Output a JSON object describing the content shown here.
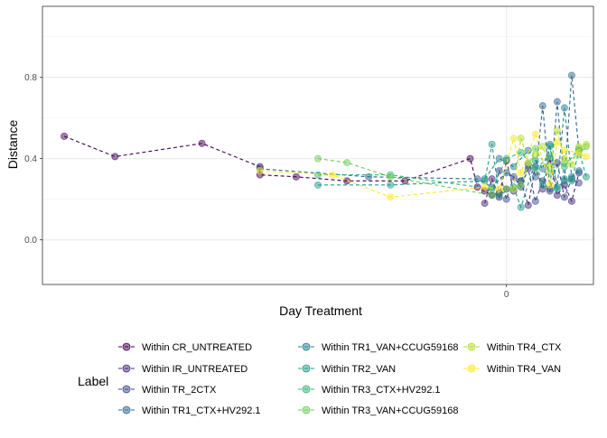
{
  "chart_data": {
    "type": "line",
    "xlabel": "Day Treatment",
    "ylabel": "Distance",
    "x_ticks": [
      0
    ],
    "y_ticks": [
      0.0,
      0.4,
      0.8
    ],
    "y_tick_labels": [
      "0.0",
      "0.4",
      "0.8"
    ],
    "x_tick_labels": [
      "0"
    ],
    "xlim": [
      -32,
      6
    ],
    "ylim": [
      -0.22,
      1.15
    ],
    "grid": true,
    "legend_title": "Label",
    "legend_position": "bottom",
    "series": [
      {
        "name": "Within CR_UNTREATED",
        "color": "#440154",
        "x": [
          -30.5,
          -27.0,
          -21.0,
          -17.0,
          -17.0,
          -14.5,
          -11.0,
          -7.0,
          -2.5,
          -2.0,
          -1.5,
          -1.0,
          -0.5,
          0.0
        ],
        "y": [
          0.51,
          0.41,
          0.475,
          0.36,
          0.32,
          0.31,
          0.29,
          0.29,
          0.4,
          0.26,
          0.24,
          0.22,
          0.23,
          0.25
        ]
      },
      {
        "name": "Within IR_UNTREATED",
        "color": "#482878",
        "x": [
          -1.5,
          -1.0,
          -0.5,
          0.0,
          0.5,
          1.0,
          1.5,
          2.0,
          2.5,
          3.0,
          3.5,
          4.0,
          4.5,
          5.0
        ],
        "y": [
          0.18,
          0.3,
          0.21,
          0.39,
          0.24,
          0.29,
          0.17,
          0.36,
          0.25,
          0.4,
          0.22,
          0.27,
          0.19,
          0.33
        ]
      },
      {
        "name": "Within TR_2CTX",
        "color": "#3E4A89",
        "x": [
          -1.0,
          -0.5,
          0.0,
          0.5,
          1.0,
          1.5,
          2.0,
          2.5,
          3.0,
          3.5,
          4.0,
          4.5,
          5.0
        ],
        "y": [
          0.22,
          0.34,
          0.2,
          0.31,
          0.26,
          0.35,
          0.19,
          0.29,
          0.24,
          0.38,
          0.21,
          0.3,
          0.28
        ]
      },
      {
        "name": "Within TR1_CTX+HV292.1",
        "color": "#31688E",
        "x": [
          -17.0,
          -9.5,
          -2.0,
          -1.0,
          0.0,
          1.0,
          1.5,
          2.0,
          2.5,
          3.0,
          3.5,
          4.0,
          4.5,
          5.0
        ],
        "y": [
          0.35,
          0.31,
          0.3,
          0.26,
          0.33,
          0.29,
          0.37,
          0.31,
          0.66,
          0.25,
          0.68,
          0.29,
          0.81,
          0.44
        ]
      },
      {
        "name": "Within TR1_VAN+CCUG59168",
        "color": "#26828E",
        "x": [
          -1.5,
          -0.5,
          0.5,
          1.5,
          2.5,
          3.0,
          3.5,
          4.0,
          4.5,
          5.0
        ],
        "y": [
          0.3,
          0.4,
          0.36,
          0.44,
          0.35,
          0.47,
          0.26,
          0.65,
          0.31,
          0.34
        ]
      },
      {
        "name": "Within TR2_VAN",
        "color": "#1F9E89",
        "x": [
          -13.0,
          -8.0,
          -1.5,
          -1.0,
          -0.5,
          0.5,
          1.0,
          2.0,
          2.5,
          3.0,
          3.5,
          4.0,
          4.5,
          5.0,
          5.5
        ],
        "y": [
          0.27,
          0.27,
          0.29,
          0.47,
          0.22,
          0.26,
          0.16,
          0.39,
          0.27,
          0.46,
          0.25,
          0.3,
          0.29,
          0.44,
          0.31
        ]
      },
      {
        "name": "Within TR3_CTX+HV292.1",
        "color": "#35B779",
        "x": [
          -13.0,
          -8.0,
          -1.0,
          0.0,
          1.0,
          2.0,
          3.0,
          4.0,
          5.0
        ],
        "y": [
          0.32,
          0.32,
          0.25,
          0.4,
          0.43,
          0.35,
          0.41,
          0.36,
          0.45
        ]
      },
      {
        "name": "Within TR3_VAN+CCUG59168",
        "color": "#6DCD59",
        "x": [
          -13.0,
          -11.0,
          -8.0,
          -1.0,
          0.0,
          1.0,
          2.0,
          3.0,
          4.0,
          5.0,
          5.5
        ],
        "y": [
          0.4,
          0.38,
          0.31,
          0.22,
          0.25,
          0.27,
          0.45,
          0.33,
          0.38,
          0.42,
          0.46
        ]
      },
      {
        "name": "Within TR4_CTX",
        "color": "#B4DE2C",
        "x": [
          0.5,
          1.0,
          1.5,
          2.0,
          2.5,
          3.0,
          3.5,
          4.0,
          4.5,
          5.0,
          5.5
        ],
        "y": [
          0.25,
          0.5,
          0.38,
          0.42,
          0.46,
          0.36,
          0.54,
          0.4,
          0.37,
          0.46,
          0.47
        ]
      },
      {
        "name": "Within TR4_VAN",
        "color": "#FDE725",
        "x": [
          -17.0,
          -12.0,
          -8.0,
          -1.5,
          -0.5,
          0.5,
          1.0,
          2.0,
          3.0,
          3.5,
          4.0,
          5.0,
          5.5
        ],
        "y": [
          0.34,
          0.32,
          0.21,
          0.26,
          0.25,
          0.5,
          0.33,
          0.52,
          0.27,
          0.48,
          0.44,
          0.43,
          0.41
        ]
      }
    ]
  }
}
